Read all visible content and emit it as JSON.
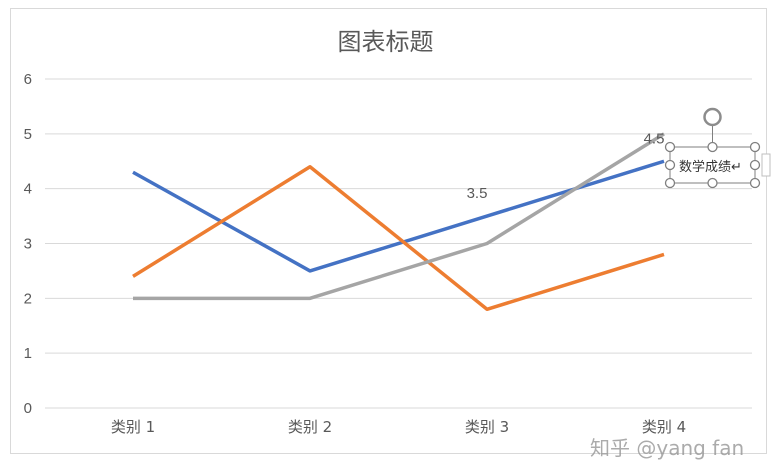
{
  "chart_data": {
    "type": "line",
    "title": "图表标题",
    "categories": [
      "类别 1",
      "类别 2",
      "类别 3",
      "类别 4"
    ],
    "ylim": [
      0,
      6
    ],
    "yticks": [
      "0",
      "1",
      "2",
      "3",
      "4",
      "5",
      "6"
    ],
    "grid": true,
    "series": [
      {
        "values": [
          4.3,
          2.5,
          3.5,
          4.5
        ],
        "color": "#4472C4"
      },
      {
        "values": [
          2.4,
          4.4,
          1.8,
          2.8
        ],
        "color": "#ED7D31"
      },
      {
        "values": [
          2,
          2,
          3,
          5
        ],
        "color": "#A5A5A5"
      }
    ],
    "data_labels": [
      {
        "series": 0,
        "index": 2,
        "text": "3.5"
      },
      {
        "series": 0,
        "index": 3,
        "text": "4.5"
      }
    ],
    "selected_label": "数学成绩"
  },
  "watermark": "知乎 @yang fan"
}
